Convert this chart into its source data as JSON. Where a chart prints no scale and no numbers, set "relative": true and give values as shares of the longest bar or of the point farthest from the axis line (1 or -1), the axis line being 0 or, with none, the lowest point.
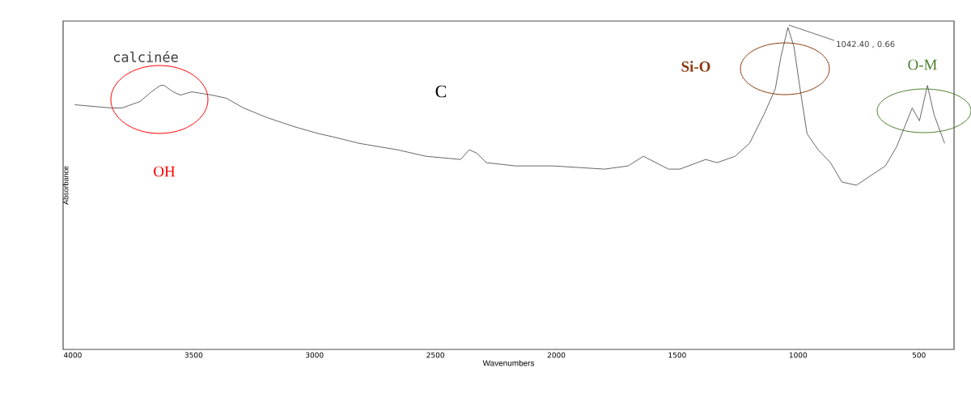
{
  "chart_data": {
    "type": "line",
    "relative": true,
    "xlabel": "Wavenumbers",
    "ylabel": "Absorbance",
    "annotations": [
      "calcinée",
      "C",
      "OH",
      "Si-O",
      "O-M",
      "1042.40 , 0.66"
    ],
    "xlim": [
      4040,
      355
    ],
    "xticks": [
      4000,
      3500,
      3000,
      2500,
      2000,
      1500,
      1000,
      500
    ],
    "tick_labels": "x",
    "grid": false,
    "marker": "none",
    "line_style": "solid",
    "x": [
      3992,
      3843,
      3796,
      3722,
      3675,
      3638,
      3622,
      3585,
      3555,
      3508,
      3424,
      3364,
      3294,
      3196,
      3076,
      2982,
      2922,
      2815,
      2657,
      2540,
      2396,
      2360,
      2330,
      2289,
      2169,
      2015,
      1800,
      1703,
      1640,
      1536,
      1489,
      1382,
      1335,
      1261,
      1201,
      1141,
      1094,
      1071,
      1042,
      1017,
      994,
      963,
      917,
      866,
      819,
      759,
      699,
      639,
      592,
      528,
      498,
      465,
      438,
      394
    ],
    "series": [
      {
        "color": "#555555",
        "values": [
          0.76,
          0.75,
          0.75,
          0.77,
          0.8,
          0.82,
          0.82,
          0.8,
          0.79,
          0.8,
          0.79,
          0.78,
          0.75,
          0.72,
          0.69,
          0.67,
          0.66,
          0.64,
          0.62,
          0.6,
          0.59,
          0.62,
          0.61,
          0.58,
          0.57,
          0.57,
          0.56,
          0.57,
          0.6,
          0.56,
          0.56,
          0.59,
          0.58,
          0.6,
          0.64,
          0.73,
          0.81,
          0.91,
          1.0,
          0.94,
          0.82,
          0.67,
          0.62,
          0.58,
          0.52,
          0.51,
          0.54,
          0.57,
          0.63,
          0.75,
          0.71,
          0.82,
          0.73,
          0.64
        ]
      }
    ]
  }
}
